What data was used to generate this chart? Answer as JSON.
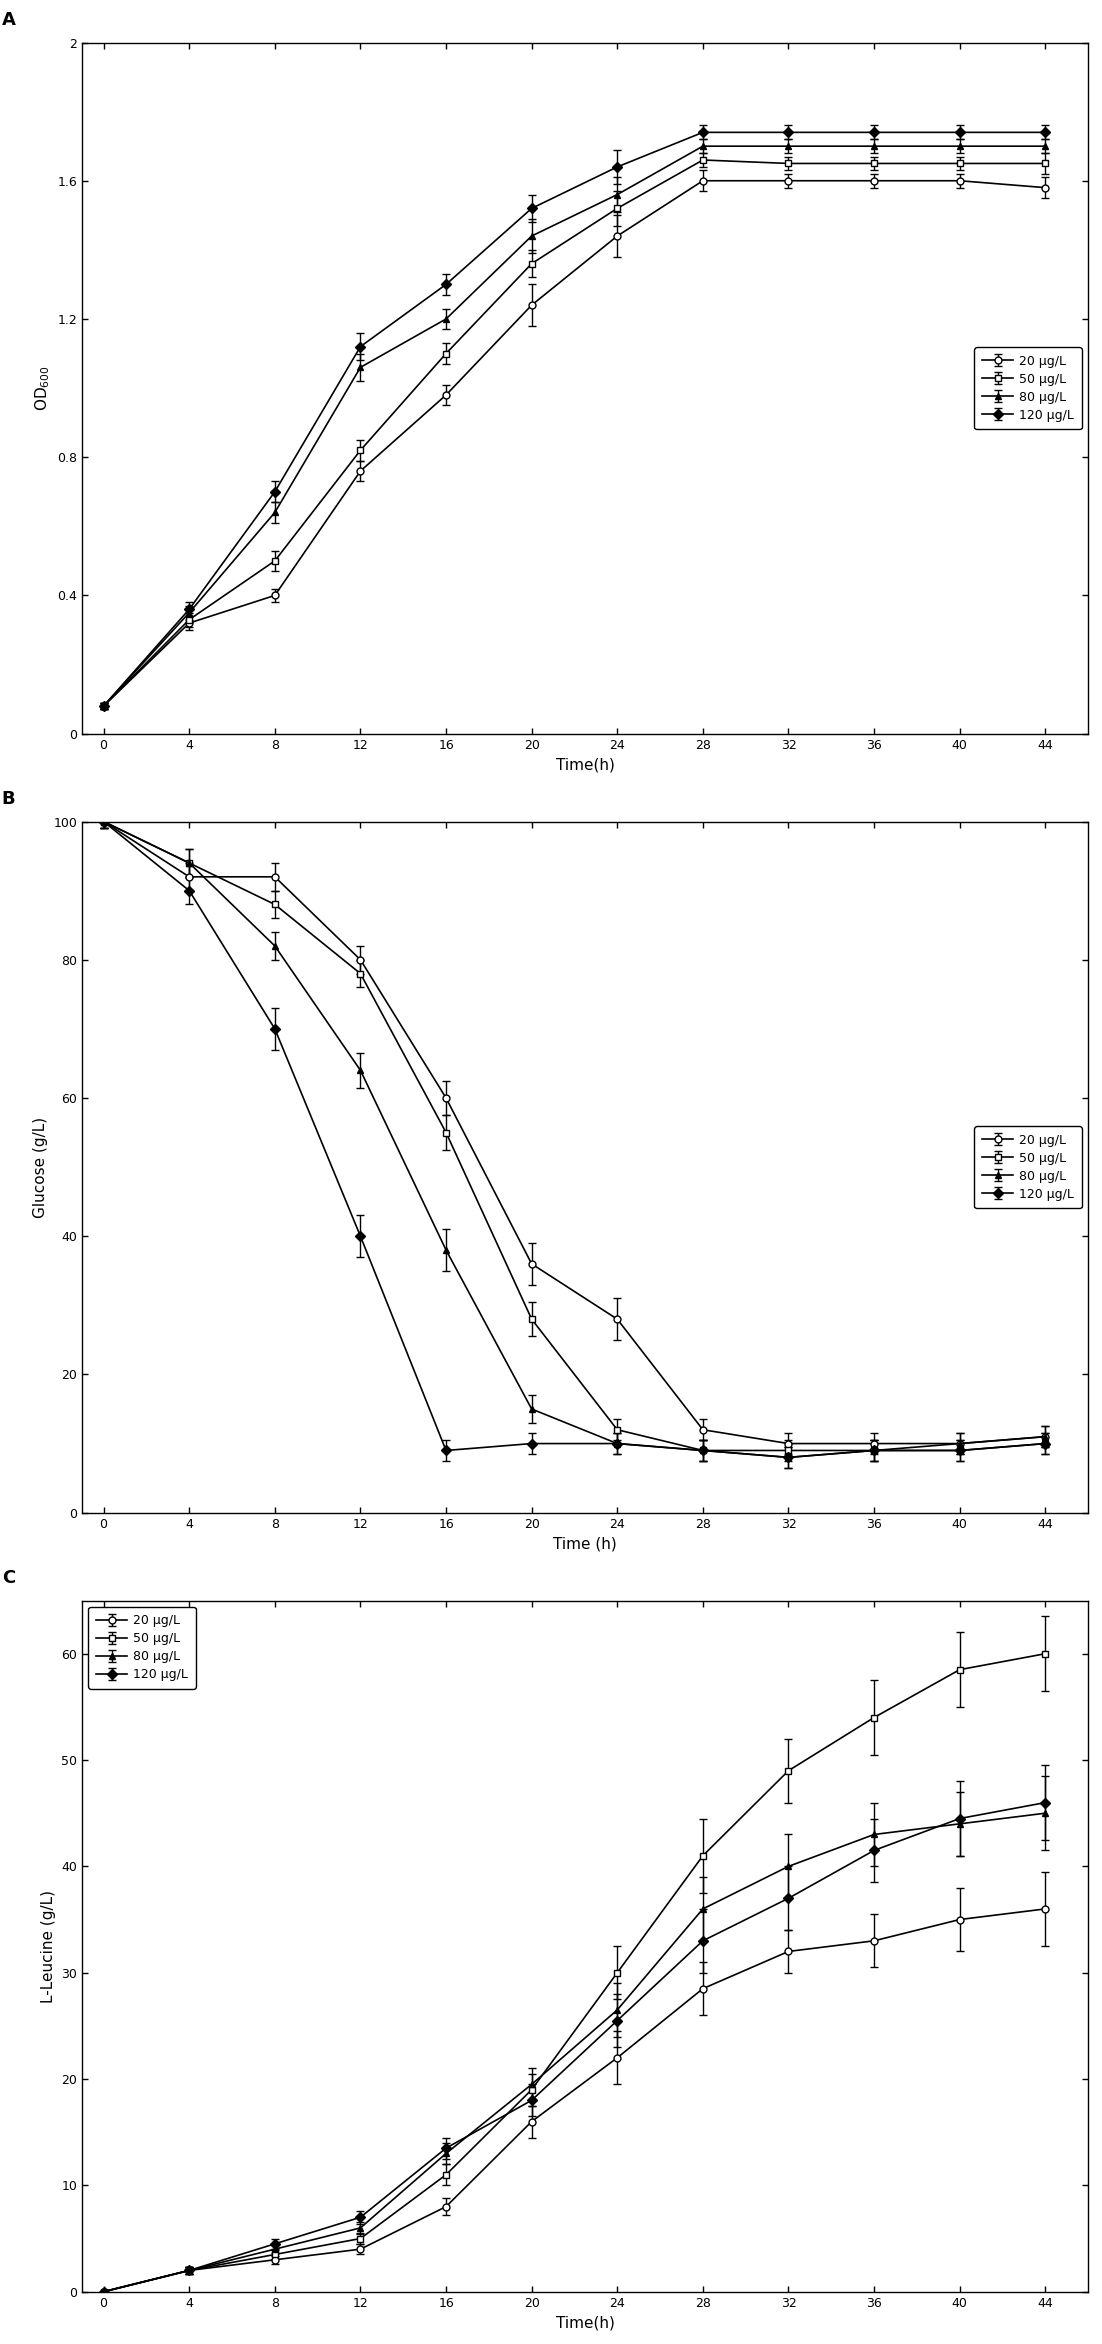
{
  "time": [
    0,
    4,
    8,
    12,
    16,
    20,
    24,
    28,
    32,
    36,
    40,
    44
  ],
  "panel_A": {
    "title": "A",
    "ylabel": "OD$_{600}$",
    "xlabel": "Time(h)",
    "ylim": [
      0.0,
      2.0
    ],
    "yticks": [
      0.0,
      0.4,
      0.8,
      1.2,
      1.6,
      2.0
    ],
    "legend_loc": "center right",
    "series": {
      "20 μg/L": {
        "y": [
          0.08,
          0.32,
          0.4,
          0.76,
          0.98,
          1.24,
          1.44,
          1.6,
          1.6,
          1.6,
          1.6,
          1.58
        ],
        "yerr": [
          0.01,
          0.02,
          0.02,
          0.03,
          0.03,
          0.06,
          0.06,
          0.03,
          0.02,
          0.02,
          0.02,
          0.03
        ],
        "marker": "o",
        "markersize": 5,
        "fillstyle": "none"
      },
      "50 μg/L": {
        "y": [
          0.08,
          0.33,
          0.5,
          0.82,
          1.1,
          1.36,
          1.52,
          1.66,
          1.65,
          1.65,
          1.65,
          1.65
        ],
        "yerr": [
          0.01,
          0.02,
          0.03,
          0.03,
          0.03,
          0.04,
          0.05,
          0.02,
          0.02,
          0.02,
          0.02,
          0.03
        ],
        "marker": "s",
        "markersize": 5,
        "fillstyle": "none"
      },
      "80 μg/L": {
        "y": [
          0.08,
          0.35,
          0.64,
          1.06,
          1.2,
          1.44,
          1.56,
          1.7,
          1.7,
          1.7,
          1.7,
          1.7
        ],
        "yerr": [
          0.01,
          0.02,
          0.03,
          0.04,
          0.03,
          0.05,
          0.05,
          0.02,
          0.02,
          0.02,
          0.02,
          0.02
        ],
        "marker": "^",
        "markersize": 5,
        "fillstyle": "full"
      },
      "120 μg/L": {
        "y": [
          0.08,
          0.36,
          0.7,
          1.12,
          1.3,
          1.52,
          1.64,
          1.74,
          1.74,
          1.74,
          1.74,
          1.74
        ],
        "yerr": [
          0.01,
          0.02,
          0.03,
          0.04,
          0.03,
          0.04,
          0.05,
          0.02,
          0.02,
          0.02,
          0.02,
          0.02
        ],
        "marker": "D",
        "markersize": 5,
        "fillstyle": "full"
      }
    }
  },
  "panel_B": {
    "title": "B",
    "ylabel": "Glucose (g/L)",
    "xlabel": "Time (h)",
    "ylim": [
      0,
      100
    ],
    "yticks": [
      0,
      20,
      40,
      60,
      80,
      100
    ],
    "legend_loc": "center right",
    "series": {
      "20 μg/L": {
        "y": [
          100,
          92,
          92,
          80,
          60,
          36,
          28,
          12,
          10,
          10,
          10,
          11
        ],
        "yerr": [
          1.0,
          2.0,
          2.0,
          2.0,
          2.5,
          3.0,
          3.0,
          1.5,
          1.5,
          1.5,
          1.5,
          1.5
        ],
        "marker": "o",
        "markersize": 5,
        "fillstyle": "none"
      },
      "50 μg/L": {
        "y": [
          100,
          94,
          88,
          78,
          55,
          28,
          12,
          9,
          9,
          9,
          9,
          10
        ],
        "yerr": [
          1.0,
          2.0,
          2.0,
          2.0,
          2.5,
          2.5,
          1.5,
          1.5,
          1.5,
          1.5,
          1.5,
          1.5
        ],
        "marker": "s",
        "markersize": 5,
        "fillstyle": "none"
      },
      "80 μg/L": {
        "y": [
          100,
          94,
          82,
          64,
          38,
          15,
          10,
          9,
          8,
          9,
          10,
          11
        ],
        "yerr": [
          1.0,
          2.0,
          2.0,
          2.5,
          3.0,
          2.0,
          1.5,
          1.5,
          1.5,
          1.5,
          1.5,
          1.5
        ],
        "marker": "^",
        "markersize": 5,
        "fillstyle": "full"
      },
      "120 μg/L": {
        "y": [
          100,
          90,
          70,
          40,
          9,
          10,
          10,
          9,
          8,
          9,
          9,
          10
        ],
        "yerr": [
          1.0,
          2.0,
          3.0,
          3.0,
          1.5,
          1.5,
          1.5,
          1.5,
          1.5,
          1.5,
          1.5,
          1.5
        ],
        "marker": "D",
        "markersize": 5,
        "fillstyle": "full"
      }
    }
  },
  "panel_C": {
    "title": "C",
    "ylabel": "L-Leucine (g/L)",
    "xlabel": "Time(h)",
    "ylim": [
      0,
      65
    ],
    "yticks": [
      0,
      10,
      20,
      30,
      40,
      50,
      60
    ],
    "legend_loc": "upper left",
    "series": {
      "20 μg/L": {
        "y": [
          0,
          2.0,
          3.0,
          4.0,
          8.0,
          16.0,
          22.0,
          28.5,
          32.0,
          33.0,
          35.0,
          36.0
        ],
        "yerr": [
          0,
          0.3,
          0.4,
          0.5,
          0.8,
          1.5,
          2.5,
          2.5,
          2.0,
          2.5,
          3.0,
          3.5
        ],
        "marker": "o",
        "markersize": 5,
        "fillstyle": "none"
      },
      "50 μg/L": {
        "y": [
          0,
          2.0,
          3.5,
          5.0,
          11.0,
          19.0,
          30.0,
          41.0,
          49.0,
          54.0,
          58.5,
          60.0
        ],
        "yerr": [
          0,
          0.3,
          0.4,
          0.5,
          1.0,
          1.5,
          2.5,
          3.5,
          3.0,
          3.5,
          3.5,
          3.5
        ],
        "marker": "s",
        "markersize": 5,
        "fillstyle": "none"
      },
      "80 μg/L": {
        "y": [
          0,
          2.0,
          4.0,
          6.0,
          13.0,
          19.5,
          26.5,
          36.0,
          40.0,
          43.0,
          44.0,
          45.0
        ],
        "yerr": [
          0,
          0.3,
          0.4,
          0.6,
          1.0,
          1.5,
          2.5,
          3.0,
          3.0,
          3.0,
          3.0,
          3.5
        ],
        "marker": "^",
        "markersize": 5,
        "fillstyle": "full"
      },
      "120 μg/L": {
        "y": [
          0,
          2.0,
          4.5,
          7.0,
          13.5,
          18.0,
          25.5,
          33.0,
          37.0,
          41.5,
          44.5,
          46.0
        ],
        "yerr": [
          0,
          0.3,
          0.5,
          0.6,
          1.0,
          1.5,
          2.5,
          3.0,
          3.0,
          3.0,
          3.5,
          3.5
        ],
        "marker": "D",
        "markersize": 5,
        "fillstyle": "full"
      }
    }
  },
  "line_color": "#000000",
  "legend_fontsize": 9,
  "axis_fontsize": 11,
  "tick_fontsize": 9,
  "label_fontsize": 13,
  "figure_width": 11.02,
  "figure_height": 23.44,
  "dpi": 100
}
